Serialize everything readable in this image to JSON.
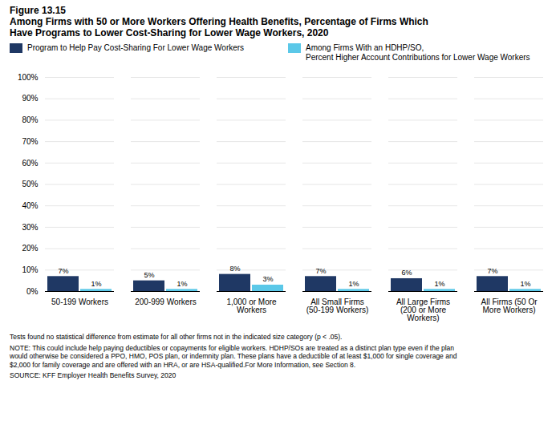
{
  "chart_data": {
    "type": "bar",
    "title": "Figure 13.15\nAmong Firms with 50 or More Workers Offering Health Benefits, Percentage of Firms Which\nHave Programs to Lower Cost-Sharing for Lower Wage Workers, 2020",
    "categories": [
      "50-199 Workers",
      "200-999 Workers",
      "1,000 or More\nWorkers",
      "All Small Firms\n(50-199 Workers)",
      "All Large Firms\n(200 or More\nWorkers)",
      "All Firms (50 Or\nMore Workers)"
    ],
    "series": [
      {
        "name": "Program to Help Pay Cost-Sharing For Lower Wage Workers",
        "color": "#1f3864",
        "values": [
          7,
          5,
          8,
          7,
          6,
          7
        ],
        "value_labels": [
          "7%",
          "5%",
          "8%",
          "7%",
          "6%",
          "7%"
        ]
      },
      {
        "name": "Among Firms With an HDHP/SO,\nPercent Higher Account Contributions for Lower Wage Workers",
        "color": "#5bc8e8",
        "values": [
          1,
          1,
          3,
          1,
          1,
          1
        ],
        "value_labels": [
          "1%",
          "1%",
          "3%",
          "1%",
          "1%",
          "1%"
        ]
      }
    ],
    "ylim": [
      0,
      100
    ],
    "yticks": [
      {
        "value": 0,
        "label": "0%"
      },
      {
        "value": 10,
        "label": "10%"
      },
      {
        "value": 20,
        "label": "20%"
      },
      {
        "value": 30,
        "label": "30%"
      },
      {
        "value": 40,
        "label": "40%"
      },
      {
        "value": 50,
        "label": "50%"
      },
      {
        "value": 60,
        "label": "60%"
      },
      {
        "value": 70,
        "label": "70%"
      },
      {
        "value": 80,
        "label": "80%"
      },
      {
        "value": 90,
        "label": "90%"
      },
      {
        "value": 100,
        "label": "100%"
      }
    ],
    "grid": true,
    "legend": "top",
    "data_labels": true,
    "annotations": [
      "Tests found no statistical difference from estimate for all other firms not in the indicated size category (p < .05).",
      "NOTE: This could include help paying deductibles or copayments for eligible workers. HDHP/SOs are treated as a distinct plan type even if the plan\nwould otherwise be considered a PPO, HMO, POS plan, or indemnity plan. These plans have a deductible of at least $1,000 for single coverage and\n$2,000 for family coverage and are offered with an HRA, or are HSA-qualified.For More Information, see Section 8.",
      "SOURCE: KFF Employer Health Benefits Survey, 2020"
    ]
  }
}
